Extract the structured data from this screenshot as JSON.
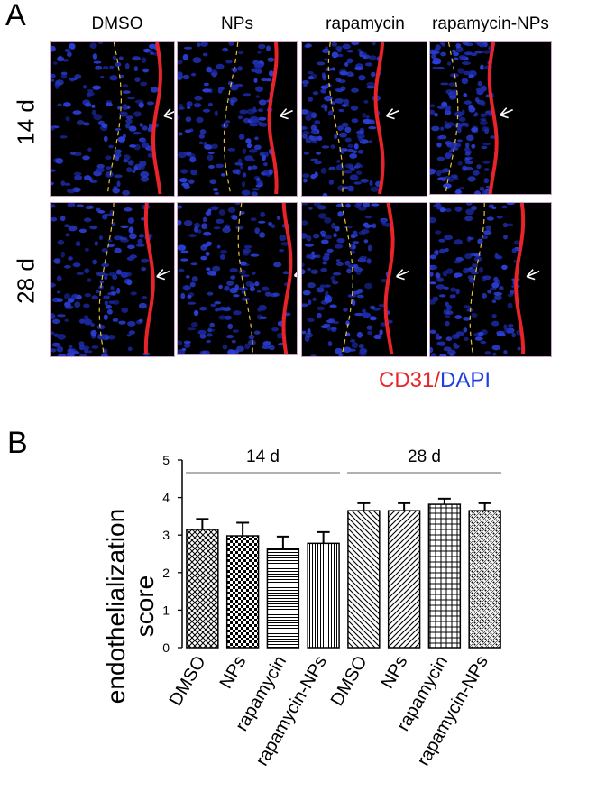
{
  "figure": {
    "panel_a_label": "A",
    "panel_b_label": "B",
    "groups": [
      "DMSO",
      "NPs",
      "rapamycin",
      "rapamycin-NPs"
    ],
    "timepoints": [
      "14 d",
      "28 d"
    ],
    "stain_legend": {
      "marker": "CD31",
      "separator": "/",
      "counterstain": "DAPI"
    },
    "colors": {
      "marker": "#e8242b",
      "counterstain": "#1f3fe0",
      "boundary": "#e8c23a"
    },
    "image_cells": [
      {
        "group": "DMSO",
        "timepoint": "14 d",
        "arrow": true
      },
      {
        "group": "NPs",
        "timepoint": "14 d",
        "arrow": true
      },
      {
        "group": "rapamycin",
        "timepoint": "14 d",
        "arrow": true
      },
      {
        "group": "rapamycin-NPs",
        "timepoint": "14 d",
        "arrow": true
      },
      {
        "group": "DMSO",
        "timepoint": "28 d",
        "arrow": true
      },
      {
        "group": "NPs",
        "timepoint": "28 d",
        "arrow": true
      },
      {
        "group": "rapamycin",
        "timepoint": "28 d",
        "arrow": true
      },
      {
        "group": "rapamycin-NPs",
        "timepoint": "28 d",
        "arrow": true
      }
    ]
  },
  "chart_data": {
    "type": "bar",
    "ylabel": "endothelialization score",
    "ylim": [
      0,
      5
    ],
    "yticks": [
      0,
      1,
      2,
      3,
      4,
      5
    ],
    "group_labels": [
      {
        "label": "14 d",
        "from": 0,
        "to": 3
      },
      {
        "label": "28 d",
        "from": 4,
        "to": 7
      }
    ],
    "categories": [
      "DMSO",
      "NPs",
      "rapamycin",
      "rapamycin-NPs",
      "DMSO",
      "NPs",
      "rapamycin",
      "rapamycin-NPs"
    ],
    "values": [
      3.15,
      2.98,
      2.63,
      2.78,
      3.65,
      3.65,
      3.82,
      3.65
    ],
    "errors": [
      0.28,
      0.35,
      0.33,
      0.3,
      0.2,
      0.2,
      0.15,
      0.2
    ],
    "patterns": [
      "crosshatch",
      "checker",
      "horizontal",
      "vertical",
      "diag-left",
      "diag-right",
      "grid",
      "dots"
    ]
  }
}
